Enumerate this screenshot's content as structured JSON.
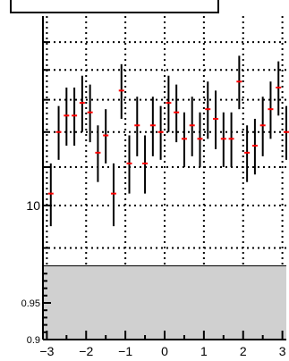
{
  "chart_data": [
    {
      "type": "scatter",
      "panel": "main",
      "title": "",
      "xlabel": "",
      "ylabel": "",
      "xlim": [
        -3.1,
        3.1
      ],
      "ylim": [
        8.6,
        16.0
      ],
      "y_scale": "log",
      "grid": true,
      "grid_style": "dotted",
      "y_tick_labels": [
        {
          "value": 10,
          "label": "10"
        }
      ],
      "marker_color": "#ff0000",
      "errorbar_color": "#000000",
      "series": [
        {
          "x": [
            -2.9,
            -2.7,
            -2.5,
            -2.3,
            -2.1,
            -1.9,
            -1.7,
            -1.5,
            -1.3,
            -1.1,
            -0.9,
            -0.7,
            -0.5,
            -0.3,
            -0.1,
            0.1,
            0.3,
            0.5,
            0.7,
            0.9,
            1.1,
            1.3,
            1.5,
            1.7,
            1.9,
            2.1,
            2.3,
            2.5,
            2.7,
            2.9,
            3.1
          ],
          "y": [
            10.3,
            12.0,
            12.5,
            12.5,
            12.9,
            12.6,
            11.4,
            11.9,
            10.3,
            13.3,
            11.1,
            12.2,
            11.1,
            12.2,
            12.0,
            12.9,
            12.6,
            11.8,
            12.2,
            11.8,
            12.7,
            12.4,
            11.8,
            11.8,
            13.6,
            11.4,
            11.6,
            12.2,
            12.7,
            13.4,
            12.0
          ],
          "yerr": [
            0.8,
            0.8,
            0.9,
            0.9,
            0.9,
            0.9,
            0.8,
            0.8,
            0.8,
            0.9,
            0.8,
            0.9,
            0.8,
            0.9,
            0.8,
            0.9,
            0.9,
            0.8,
            0.9,
            0.8,
            0.9,
            0.9,
            0.8,
            0.8,
            0.9,
            0.8,
            0.8,
            0.9,
            0.9,
            0.9,
            0.8
          ]
        }
      ]
    },
    {
      "type": "area",
      "panel": "ratio",
      "title": "",
      "xlabel": "",
      "ylabel": "",
      "xlim": [
        -3.1,
        3.1
      ],
      "ylim": [
        0.9,
        1.0
      ],
      "x_ticks": [
        -3,
        -2,
        -1,
        0,
        1,
        2,
        3
      ],
      "y_tick_labels": [
        {
          "value": 0.9,
          "label": "0.9"
        },
        {
          "value": 0.95,
          "label": "0.95"
        }
      ],
      "band": {
        "low": 0.9,
        "high": 1.0,
        "color": "#d0d0d0"
      }
    }
  ]
}
